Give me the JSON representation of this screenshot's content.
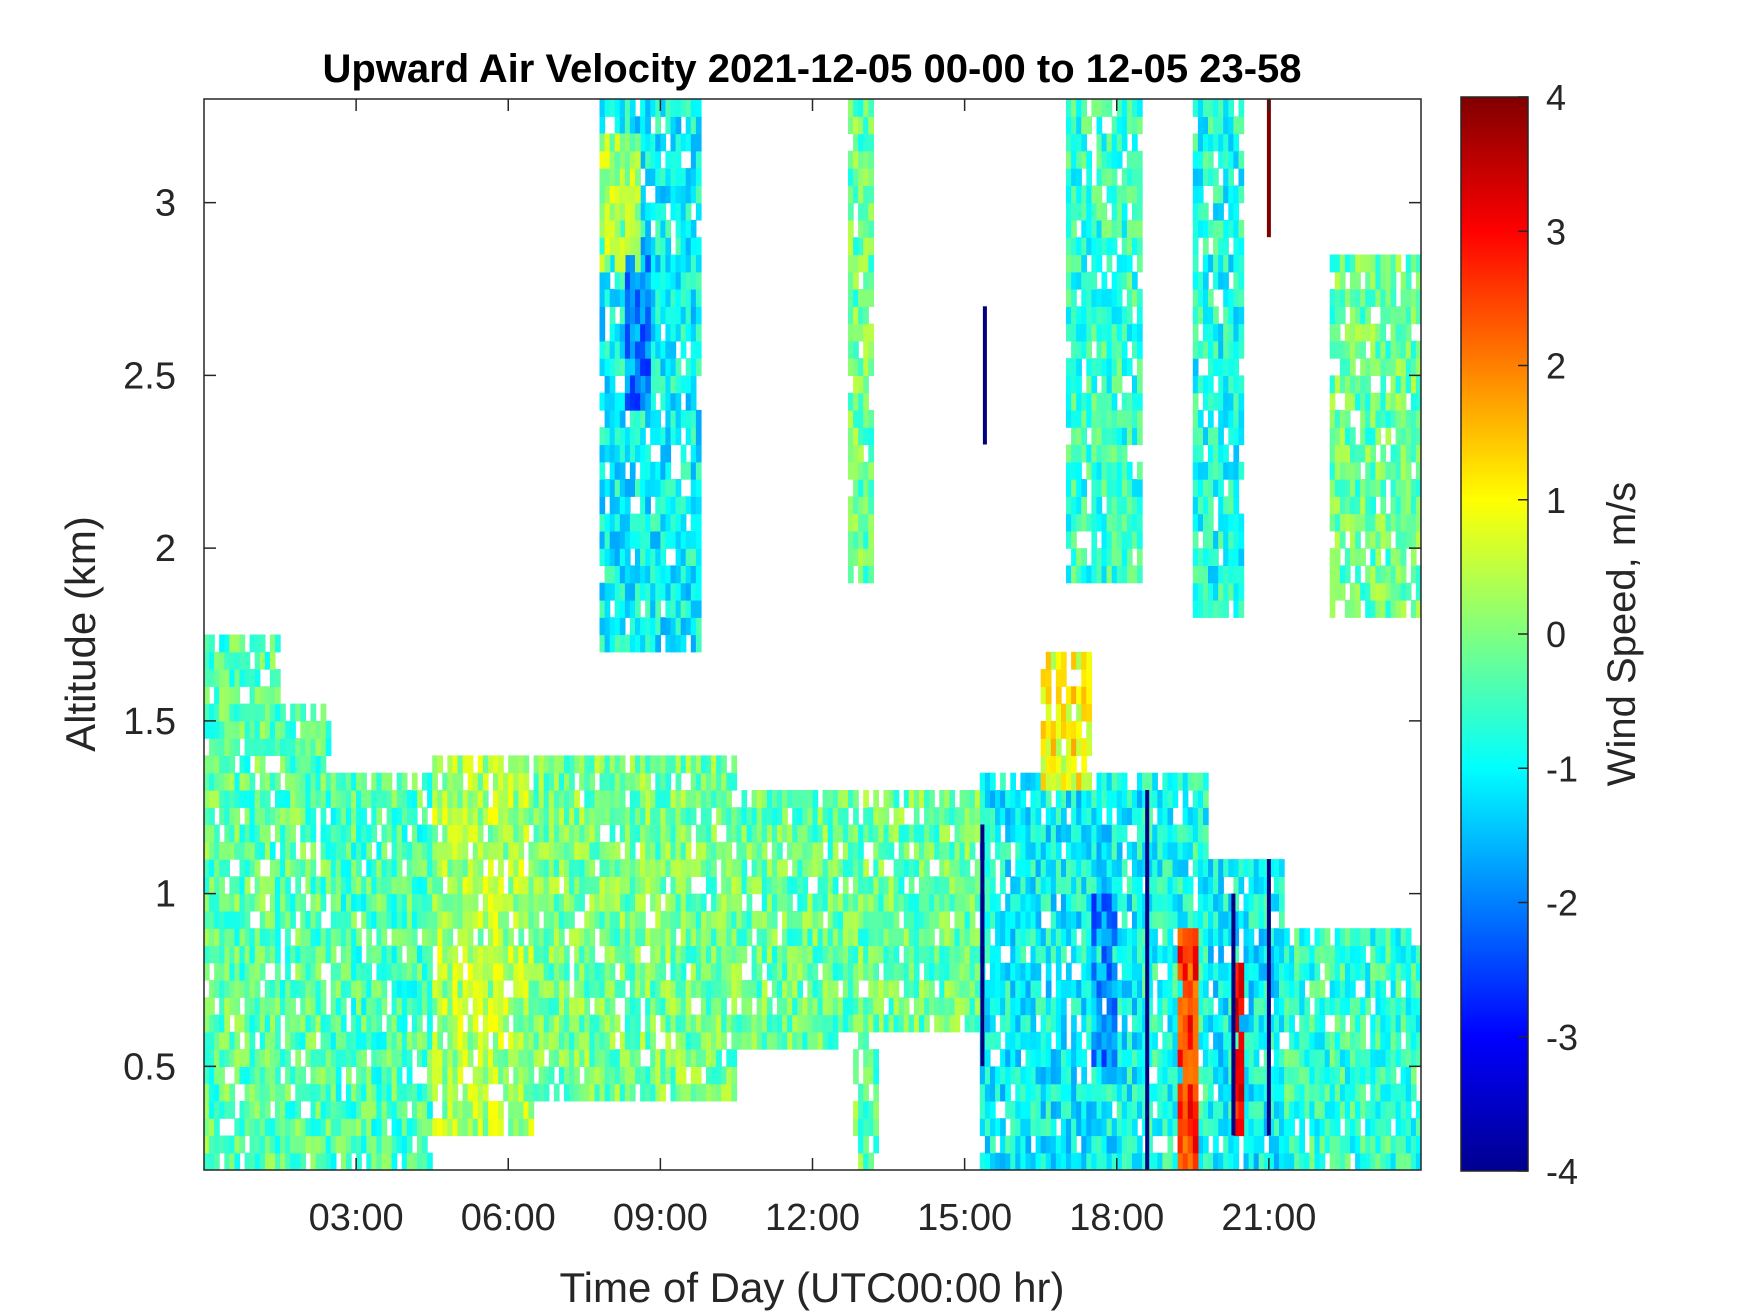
{
  "chart_data": {
    "type": "heatmap",
    "title": "Upward Air Velocity 2021-12-05 00-00 to 12-05 23-58",
    "xlabel": "Time of Day (UTC00:00 hr)",
    "ylabel": "Altitude (km)",
    "colorbar_label": "Wind Speed, m/s",
    "colormap": "jet",
    "xlim_hours": [
      0,
      24
    ],
    "ylim_km": [
      0.2,
      3.3
    ],
    "clim": [
      -4,
      4
    ],
    "x_ticks": [
      {
        "hour": 3,
        "label": "03:00"
      },
      {
        "hour": 6,
        "label": "06:00"
      },
      {
        "hour": 9,
        "label": "09:00"
      },
      {
        "hour": 12,
        "label": "12:00"
      },
      {
        "hour": 15,
        "label": "15:00"
      },
      {
        "hour": 18,
        "label": "18:00"
      },
      {
        "hour": 21,
        "label": "21:00"
      }
    ],
    "y_ticks": [
      {
        "value": 0.5,
        "label": "0.5"
      },
      {
        "value": 1,
        "label": "1"
      },
      {
        "value": 1.5,
        "label": "1.5"
      },
      {
        "value": 2,
        "label": "2"
      },
      {
        "value": 2.5,
        "label": "2.5"
      },
      {
        "value": 3,
        "label": "3"
      }
    ],
    "colorbar_ticks": [
      {
        "value": 4,
        "label": "4"
      },
      {
        "value": 3,
        "label": "3"
      },
      {
        "value": 2,
        "label": "2"
      },
      {
        "value": 1,
        "label": "1"
      },
      {
        "value": 0,
        "label": "0"
      },
      {
        "value": -1,
        "label": "-1"
      },
      {
        "value": -2,
        "label": "-2"
      },
      {
        "value": -3,
        "label": "-3"
      },
      {
        "value": -4,
        "label": "-4"
      }
    ],
    "data_regions": [
      {
        "t": [
          0.0,
          2.5
        ],
        "alt": [
          0.2,
          1.55
        ],
        "w": -0.3
      },
      {
        "t": [
          0.0,
          1.5
        ],
        "alt": [
          1.55,
          1.75
        ],
        "w": -0.4
      },
      {
        "t": [
          2.5,
          4.5
        ],
        "alt": [
          0.2,
          1.35
        ],
        "w": -0.4
      },
      {
        "t": [
          4.5,
          6.5
        ],
        "alt": [
          0.3,
          1.4
        ],
        "w": 0.3
      },
      {
        "t": [
          6.5,
          10.5
        ],
        "alt": [
          0.4,
          1.4
        ],
        "w": -0.1
      },
      {
        "t": [
          10.5,
          12.5
        ],
        "alt": [
          0.55,
          1.3
        ],
        "w": -0.2
      },
      {
        "t": [
          12.5,
          15.3
        ],
        "alt": [
          0.6,
          1.3
        ],
        "w": -0.2
      },
      {
        "t": [
          12.8,
          13.3
        ],
        "alt": [
          0.2,
          0.65
        ],
        "w": -0.2
      },
      {
        "t": [
          7.8,
          9.8
        ],
        "alt": [
          1.7,
          3.3
        ],
        "w": -1.0
      },
      {
        "t": [
          8.3,
          8.8
        ],
        "alt": [
          2.4,
          2.9
        ],
        "w": -2.0
      },
      {
        "t": [
          7.8,
          8.6
        ],
        "alt": [
          2.8,
          3.2
        ],
        "w": 0.3
      },
      {
        "t": [
          12.7,
          13.2
        ],
        "alt": [
          1.9,
          3.3
        ],
        "w": -0.2
      },
      {
        "t": [
          15.3,
          18.5
        ],
        "alt": [
          0.2,
          1.35
        ],
        "w": -1.0
      },
      {
        "t": [
          16.5,
          17.5
        ],
        "alt": [
          1.3,
          1.7
        ],
        "w": 1.0
      },
      {
        "t": [
          17.5,
          18.0
        ],
        "alt": [
          0.5,
          1.0
        ],
        "w": -2.0
      },
      {
        "t": [
          18.5,
          19.8
        ],
        "alt": [
          0.2,
          1.35
        ],
        "w": -0.8
      },
      {
        "t": [
          19.2,
          19.6
        ],
        "alt": [
          0.2,
          0.9
        ],
        "w": 2.6
      },
      {
        "t": [
          19.8,
          21.3
        ],
        "alt": [
          0.2,
          1.1
        ],
        "w": -1.0
      },
      {
        "t": [
          20.3,
          20.5
        ],
        "alt": [
          0.3,
          0.8
        ],
        "w": 3.0
      },
      {
        "t": [
          21.3,
          24.0
        ],
        "alt": [
          0.2,
          0.9
        ],
        "w": -0.6
      },
      {
        "t": [
          22.2,
          24.0
        ],
        "alt": [
          1.8,
          2.85
        ],
        "w": -0.2
      },
      {
        "t": [
          17.0,
          18.5
        ],
        "alt": [
          1.9,
          3.3
        ],
        "w": -0.6
      },
      {
        "t": [
          19.5,
          20.5
        ],
        "alt": [
          1.8,
          3.3
        ],
        "w": -0.8
      }
    ],
    "extreme_streaks": [
      {
        "t": 15.35,
        "alt": [
          0.5,
          1.2
        ],
        "w": -4
      },
      {
        "t": 15.4,
        "alt": [
          2.3,
          2.7
        ],
        "w": -4
      },
      {
        "t": 18.6,
        "alt": [
          0.2,
          1.3
        ],
        "w": -4
      },
      {
        "t": 20.3,
        "alt": [
          0.3,
          1.0
        ],
        "w": -4
      },
      {
        "t": 21.0,
        "alt": [
          0.3,
          1.1
        ],
        "w": -4
      },
      {
        "t": 21.0,
        "alt": [
          2.9,
          3.3
        ],
        "w": 4
      }
    ]
  }
}
